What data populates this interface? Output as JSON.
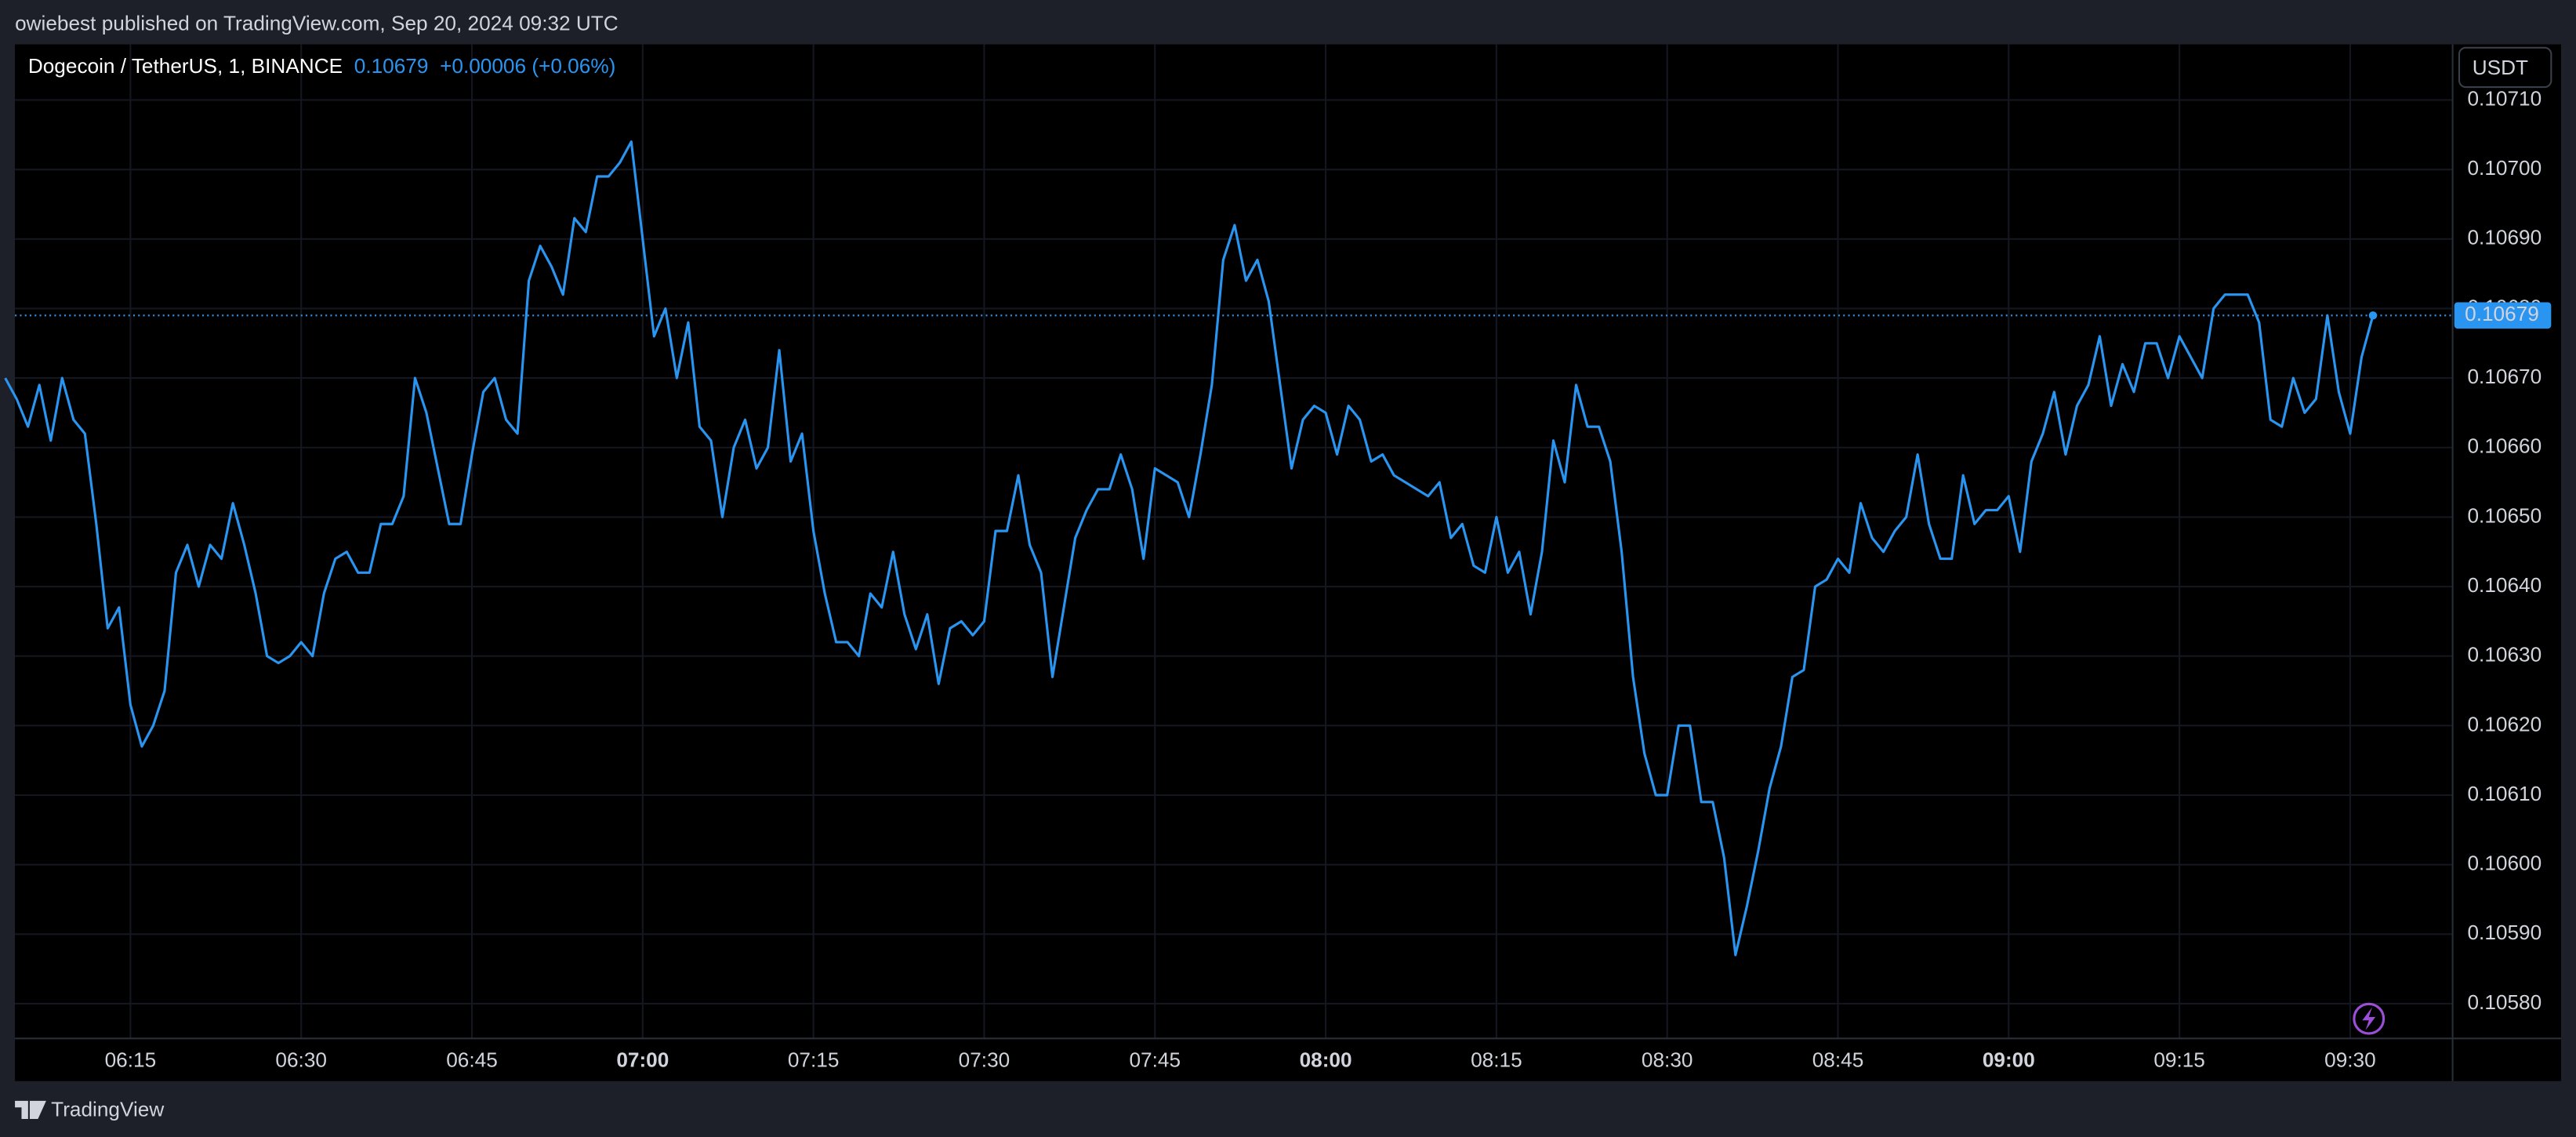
{
  "chart_data": {
    "type": "line",
    "published": "owiebest published on TradingView.com, Sep 20, 2024 09:32 UTC",
    "title": "Dogecoin / TetherUS, 1, BINANCE",
    "change": "+0.00006 (+0.06%)",
    "currency": "USDT",
    "brand": "TradingView",
    "color": "#2a95f0",
    "grid": true,
    "x": [
      "06:04",
      "06:05",
      "06:06",
      "06:07",
      "06:08",
      "06:09",
      "06:10",
      "06:11",
      "06:12",
      "06:13",
      "06:14",
      "06:15",
      "06:16",
      "06:17",
      "06:18",
      "06:19",
      "06:20",
      "06:21",
      "06:22",
      "06:23",
      "06:24",
      "06:25",
      "06:26",
      "06:27",
      "06:28",
      "06:29",
      "06:30",
      "06:31",
      "06:32",
      "06:33",
      "06:34",
      "06:35",
      "06:36",
      "06:37",
      "06:38",
      "06:39",
      "06:40",
      "06:41",
      "06:42",
      "06:43",
      "06:44",
      "06:45",
      "06:46",
      "06:47",
      "06:48",
      "06:49",
      "06:50",
      "06:51",
      "06:52",
      "06:53",
      "06:54",
      "06:55",
      "06:56",
      "06:57",
      "06:58",
      "06:59",
      "07:00",
      "07:01",
      "07:02",
      "07:03",
      "07:04",
      "07:05",
      "07:06",
      "07:07",
      "07:08",
      "07:09",
      "07:10",
      "07:11",
      "07:12",
      "07:13",
      "07:14",
      "07:15",
      "07:16",
      "07:17",
      "07:18",
      "07:19",
      "07:20",
      "07:21",
      "07:22",
      "07:23",
      "07:24",
      "07:25",
      "07:26",
      "07:27",
      "07:28",
      "07:29",
      "07:30",
      "07:31",
      "07:32",
      "07:33",
      "07:34",
      "07:35",
      "07:36",
      "07:37",
      "07:38",
      "07:39",
      "07:40",
      "07:41",
      "07:42",
      "07:43",
      "07:44",
      "07:45",
      "07:46",
      "07:47",
      "07:48",
      "07:49",
      "07:50",
      "07:51",
      "07:52",
      "07:53",
      "07:54",
      "07:55",
      "07:56",
      "07:57",
      "07:58",
      "07:59",
      "08:00",
      "08:01",
      "08:02",
      "08:03",
      "08:04",
      "08:05",
      "08:06",
      "08:07",
      "08:08",
      "08:09",
      "08:10",
      "08:11",
      "08:12",
      "08:13",
      "08:14",
      "08:15",
      "08:16",
      "08:17",
      "08:18",
      "08:19",
      "08:20",
      "08:21",
      "08:22",
      "08:23",
      "08:24",
      "08:25",
      "08:26",
      "08:27",
      "08:28",
      "08:29",
      "08:30",
      "08:31",
      "08:32",
      "08:33",
      "08:34",
      "08:35",
      "08:36",
      "08:37",
      "08:38",
      "08:39",
      "08:40",
      "08:41",
      "08:42",
      "08:43",
      "08:44",
      "08:45",
      "08:46",
      "08:47",
      "08:48",
      "08:49",
      "08:50",
      "08:51",
      "08:52",
      "08:53",
      "08:54",
      "08:55",
      "08:56",
      "08:57",
      "08:58",
      "08:59",
      "09:00",
      "09:01",
      "09:02",
      "09:03",
      "09:04",
      "09:05",
      "09:06",
      "09:07",
      "09:08",
      "09:09",
      "09:10",
      "09:11",
      "09:12",
      "09:13",
      "09:14",
      "09:15",
      "09:16",
      "09:17",
      "09:18",
      "09:19",
      "09:20",
      "09:21",
      "09:22",
      "09:23",
      "09:24",
      "09:25",
      "09:26",
      "09:27",
      "09:28",
      "09:29",
      "09:30",
      "09:31",
      "09:32"
    ],
    "values": [
      0.1067,
      0.10667,
      0.10663,
      0.10669,
      0.10661,
      0.1067,
      0.10664,
      0.10662,
      0.10649,
      0.10634,
      0.10637,
      0.10623,
      0.10617,
      0.1062,
      0.10625,
      0.10642,
      0.10646,
      0.1064,
      0.10646,
      0.10644,
      0.10652,
      0.10646,
      0.10639,
      0.1063,
      0.10629,
      0.1063,
      0.10632,
      0.1063,
      0.10639,
      0.10644,
      0.10645,
      0.10642,
      0.10642,
      0.10649,
      0.10649,
      0.10653,
      0.1067,
      0.10665,
      0.10657,
      0.10649,
      0.10649,
      0.10659,
      0.10668,
      0.1067,
      0.10664,
      0.10662,
      0.10684,
      0.10689,
      0.10686,
      0.10682,
      0.10693,
      0.10691,
      0.10699,
      0.10699,
      0.10701,
      0.10704,
      0.1069,
      0.10676,
      0.1068,
      0.1067,
      0.10678,
      0.10663,
      0.10661,
      0.1065,
      0.1066,
      0.10664,
      0.10657,
      0.1066,
      0.10674,
      0.10658,
      0.10662,
      0.10648,
      0.10639,
      0.10632,
      0.10632,
      0.1063,
      0.10639,
      0.10637,
      0.10645,
      0.10636,
      0.10631,
      0.10636,
      0.10626,
      0.10634,
      0.10635,
      0.10633,
      0.10635,
      0.10648,
      0.10648,
      0.10656,
      0.10646,
      0.10642,
      0.10627,
      0.10637,
      0.10647,
      0.10651,
      0.10654,
      0.10654,
      0.10659,
      0.10654,
      0.10644,
      0.10657,
      0.10656,
      0.10655,
      0.1065,
      0.10659,
      0.10669,
      0.10687,
      0.10692,
      0.10684,
      0.10687,
      0.10681,
      0.10669,
      0.10657,
      0.10664,
      0.10666,
      0.10665,
      0.10659,
      0.10666,
      0.10664,
      0.10658,
      0.10659,
      0.10656,
      0.10655,
      0.10654,
      0.10653,
      0.10655,
      0.10647,
      0.10649,
      0.10643,
      0.10642,
      0.1065,
      0.10642,
      0.10645,
      0.10636,
      0.10645,
      0.10661,
      0.10655,
      0.10669,
      0.10663,
      0.10663,
      0.10658,
      0.10645,
      0.10627,
      0.10616,
      0.1061,
      0.1061,
      0.1062,
      0.1062,
      0.10609,
      0.10609,
      0.10601,
      0.10587,
      0.10594,
      0.10602,
      0.10611,
      0.10617,
      0.10627,
      0.10628,
      0.1064,
      0.10641,
      0.10644,
      0.10642,
      0.10652,
      0.10647,
      0.10645,
      0.10648,
      0.1065,
      0.10659,
      0.10649,
      0.10644,
      0.10644,
      0.10656,
      0.10649,
      0.10651,
      0.10651,
      0.10653,
      0.10645,
      0.10658,
      0.10662,
      0.10668,
      0.10659,
      0.10666,
      0.10669,
      0.10676,
      0.10666,
      0.10672,
      0.10668,
      0.10675,
      0.10675,
      0.1067,
      0.10676,
      0.10673,
      0.1067,
      0.1068,
      0.10682,
      0.10682,
      0.10682,
      0.10678,
      0.10664,
      0.10663,
      0.1067,
      0.10665,
      0.10667,
      0.10679,
      0.10668,
      0.10662,
      0.10673,
      0.10679
    ],
    "xlim": [
      "06:05",
      "09:39"
    ],
    "xticks": [
      "06:15",
      "06:30",
      "06:45",
      "07:00",
      "07:15",
      "07:30",
      "07:45",
      "08:00",
      "08:15",
      "08:30",
      "08:45",
      "09:00",
      "09:15",
      "09:30"
    ],
    "ylim": [
      0.10575,
      0.10718
    ],
    "yticks": [
      {
        "value": 0.1058,
        "label": "0.10580"
      },
      {
        "value": 0.1059,
        "label": "0.10590"
      },
      {
        "value": 0.106,
        "label": "0.10600"
      },
      {
        "value": 0.1061,
        "label": "0.10610"
      },
      {
        "value": 0.1062,
        "label": "0.10620"
      },
      {
        "value": 0.1063,
        "label": "0.10630"
      },
      {
        "value": 0.1064,
        "label": "0.10640"
      },
      {
        "value": 0.1065,
        "label": "0.10650"
      },
      {
        "value": 0.1066,
        "label": "0.10660"
      },
      {
        "value": 0.1067,
        "label": "0.10670"
      },
      {
        "value": 0.1068,
        "label": "0.10680"
      },
      {
        "value": 0.1069,
        "label": "0.10690"
      },
      {
        "value": 0.107,
        "label": "0.10700"
      },
      {
        "value": 0.1071,
        "label": "0.10710"
      }
    ]
  }
}
